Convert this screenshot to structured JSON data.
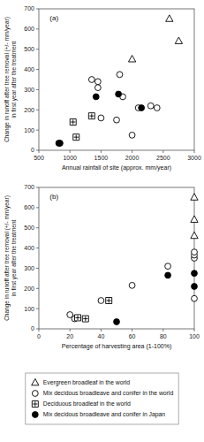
{
  "chart_data": [
    {
      "type": "scatter",
      "x_label": "Annual rainfall of site (approx. mm/year)",
      "y_label": "Change in runoff after tree removal (+/- mm/year)\nin first year after the treatment",
      "annotations": [
        "(a)"
      ],
      "xlim": [
        500,
        3000
      ],
      "ylim": [
        0,
        700
      ],
      "xticks": [
        500,
        1000,
        1500,
        2000,
        2500,
        3000
      ],
      "yticks": [
        0,
        100,
        200,
        300,
        400,
        500,
        600,
        700
      ],
      "grid": false,
      "legend": "bottom",
      "series": [
        {
          "name": "Evergreen broadleaf in the world",
          "marker": "triangle-open",
          "color": "black",
          "x": [
            2000,
            2600,
            2750
          ],
          "values": [
            450,
            650,
            540
          ]
        },
        {
          "name": "Mix decidous broadleave and conifer in the world",
          "marker": "circle-open",
          "color": "black",
          "x": [
            1350,
            1450,
            1450,
            1500,
            1750,
            1800,
            1850,
            2000,
            2100,
            2300,
            2400
          ],
          "values": [
            350,
            340,
            310,
            160,
            150,
            375,
            265,
            75,
            210,
            220,
            210
          ]
        },
        {
          "name": "Deciduous broadleaf in the world",
          "marker": "square-plus",
          "color": "black",
          "x": [
            1050,
            1100,
            1350
          ],
          "values": [
            140,
            65,
            170
          ]
        },
        {
          "name": "Mix decidous broadleave and conifer in Japan",
          "marker": "circle-filled",
          "color": "black",
          "x": [
            820,
            840,
            1420,
            1780,
            2150
          ],
          "values": [
            35,
            35,
            265,
            278,
            210
          ]
        }
      ]
    },
    {
      "type": "scatter",
      "x_label": "Percentage of harvesting area (1-100%)",
      "y_label": "Change in runoff after tree removal (+/- mm/year)\nin first year after the treatment",
      "annotations": [
        "(b)"
      ],
      "xlim": [
        0,
        100
      ],
      "ylim": [
        0,
        700
      ],
      "xticks": [
        0,
        20,
        40,
        60,
        80,
        100
      ],
      "yticks": [
        0,
        100,
        200,
        300,
        400,
        500,
        600,
        700
      ],
      "grid": false,
      "series": [
        {
          "marker": "triangle-open",
          "color": "black",
          "x": [
            100,
            100,
            100
          ],
          "values": [
            650,
            540,
            460
          ]
        },
        {
          "marker": "circle-open",
          "color": "black",
          "x": [
            20,
            23,
            40,
            60,
            83,
            100,
            100,
            100,
            100
          ],
          "values": [
            70,
            50,
            140,
            215,
            310,
            350,
            365,
            380,
            150
          ]
        },
        {
          "marker": "square-plus",
          "color": "black",
          "x": [
            25,
            30,
            45
          ],
          "values": [
            55,
            50,
            140
          ]
        },
        {
          "marker": "circle-filled",
          "color": "black",
          "x": [
            50,
            83,
            100,
            100
          ],
          "values": [
            35,
            265,
            275,
            210
          ]
        }
      ]
    }
  ]
}
